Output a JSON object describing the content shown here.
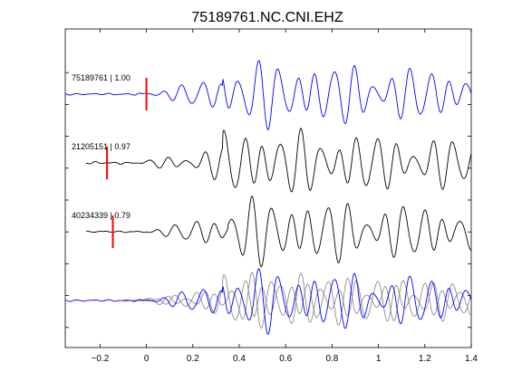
{
  "chart_data": {
    "type": "line",
    "title": "75189761.NC.CNI.EHZ",
    "xlabel": "",
    "ylabel": "",
    "xlim": [
      -0.35,
      1.4
    ],
    "xticks": [
      -0.2,
      0,
      0.2,
      0.4,
      0.6,
      0.8,
      1,
      1.2,
      1.4
    ],
    "xtick_labels": [
      "−0.2",
      "0",
      "0.2",
      "0.4",
      "0.6",
      "0.8",
      "1",
      "1.2",
      "1.4"
    ],
    "grid": false,
    "colors": {
      "primary": "#0000ff",
      "secondary": "#000000",
      "overlay_secondary": "#808080",
      "pick": "#ff0000"
    },
    "traces": [
      {
        "label": "75189761 | 1.00",
        "event_id": "75189761",
        "correlation": 1.0,
        "pick_time": 0.0,
        "color": "#0000ff",
        "shift": 0.0,
        "seed": 1
      },
      {
        "label": "21205151 | 0.97",
        "event_id": "21205151",
        "correlation": 0.97,
        "pick_time": -0.17,
        "color": "#000000",
        "shift": 0.0,
        "seed": 2
      },
      {
        "label": "40234339 | 0.79",
        "event_id": "40234339",
        "correlation": 0.79,
        "pick_time": -0.145,
        "color": "#000000",
        "shift": 0.02,
        "seed": 3
      }
    ],
    "stack": {
      "color_primary": "#0000ff",
      "color_secondary": "#808080"
    }
  }
}
